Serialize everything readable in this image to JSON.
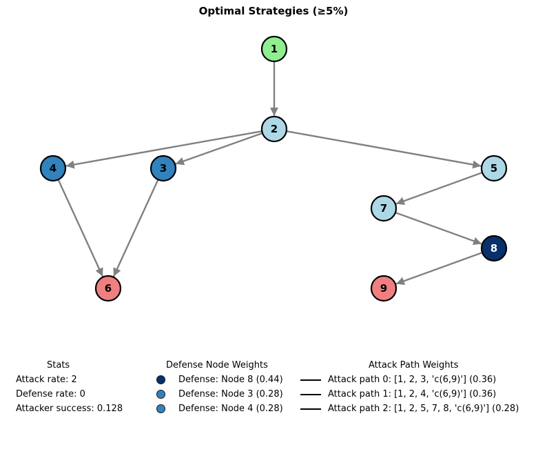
{
  "title": "Optimal Strategies (≥5%)",
  "colors": {
    "edge": "#808080",
    "node_border": "#000000",
    "start": "#90ee90",
    "target": "#f08080",
    "normal": "#add8e6",
    "defense_high": "#08306b",
    "defense_mid": "#3182bd"
  },
  "graph": {
    "nodes": [
      {
        "id": "1",
        "label": "1",
        "role": "start"
      },
      {
        "id": "2",
        "label": "2",
        "role": "normal"
      },
      {
        "id": "3",
        "label": "3",
        "role": "defense_mid"
      },
      {
        "id": "4",
        "label": "4",
        "role": "defense_mid"
      },
      {
        "id": "5",
        "label": "5",
        "role": "normal"
      },
      {
        "id": "6",
        "label": "6",
        "role": "target"
      },
      {
        "id": "7",
        "label": "7",
        "role": "normal"
      },
      {
        "id": "8",
        "label": "8",
        "role": "defense_high"
      },
      {
        "id": "9",
        "label": "9",
        "role": "target"
      }
    ],
    "edges": [
      {
        "from": "1",
        "to": "2"
      },
      {
        "from": "2",
        "to": "4"
      },
      {
        "from": "2",
        "to": "3"
      },
      {
        "from": "2",
        "to": "5"
      },
      {
        "from": "4",
        "to": "6"
      },
      {
        "from": "3",
        "to": "6"
      },
      {
        "from": "5",
        "to": "7"
      },
      {
        "from": "7",
        "to": "8"
      },
      {
        "from": "8",
        "to": "9"
      }
    ]
  },
  "stats": {
    "title": "Stats",
    "attack_rate": "Attack rate: 2",
    "defense_rate": "Defense rate: 0",
    "attacker_success": "Attacker success: 0.128"
  },
  "defense_legend": {
    "title": "Defense Node Weights",
    "items": [
      {
        "label": "Defense: Node 8 (0.44)",
        "color": "#08306b"
      },
      {
        "label": "Defense: Node 3 (0.28)",
        "color": "#3182bd"
      },
      {
        "label": "Defense: Node 4 (0.28)",
        "color": "#3182bd"
      }
    ]
  },
  "attack_legend": {
    "title": "Attack Path Weights",
    "items": [
      {
        "label": "Attack path 0: [1, 2, 3, 'c(6,9)'] (0.36)"
      },
      {
        "label": "Attack path 1: [1, 2, 4, 'c(6,9)'] (0.36)"
      },
      {
        "label": "Attack path 2: [1, 2, 5, 7, 8, 'c(6,9)'] (0.28)"
      }
    ]
  }
}
